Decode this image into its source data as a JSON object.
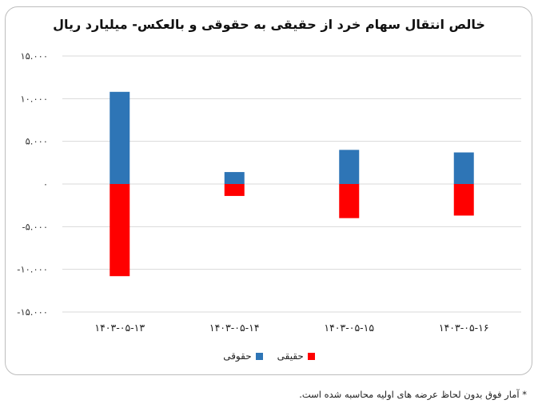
{
  "chart_data": {
    "type": "bar",
    "title": "خالص انتقال سهام خرد از حقیقی به حقوقی و بالعکس- میلیارد ریال",
    "categories": [
      "۱۴۰۳-۰۵-۱۳",
      "۱۴۰۳-۰۵-۱۴",
      "۱۴۰۳-۰۵-۱۵",
      "۱۴۰۳-۰۵-۱۶"
    ],
    "series": [
      {
        "name": "حقوقی",
        "color": "#2e75b6",
        "values": [
          10800,
          1400,
          4000,
          3700
        ]
      },
      {
        "name": "حقیقی",
        "color": "#ff0000",
        "values": [
          -10800,
          -1400,
          -4000,
          -3700
        ]
      }
    ],
    "y_ticks": [
      15000,
      10000,
      5000,
      0,
      -5000,
      -10000,
      -15000
    ],
    "y_tick_labels": [
      "۱۵.۰۰۰",
      "۱۰.۰۰۰",
      "۵.۰۰۰",
      "۰",
      "-۵.۰۰۰",
      "-۱۰.۰۰۰",
      "-۱۵.۰۰۰"
    ],
    "ylim": [
      -15000,
      15000
    ],
    "grid": true,
    "legend": "bottom",
    "stacked": true
  },
  "footnote": "* آمار فوق بدون لحاظ عرضه های اولیه محاسبه شده است.",
  "legend_labels": {
    "real": "حقیقی",
    "legal": "حقوقی"
  }
}
